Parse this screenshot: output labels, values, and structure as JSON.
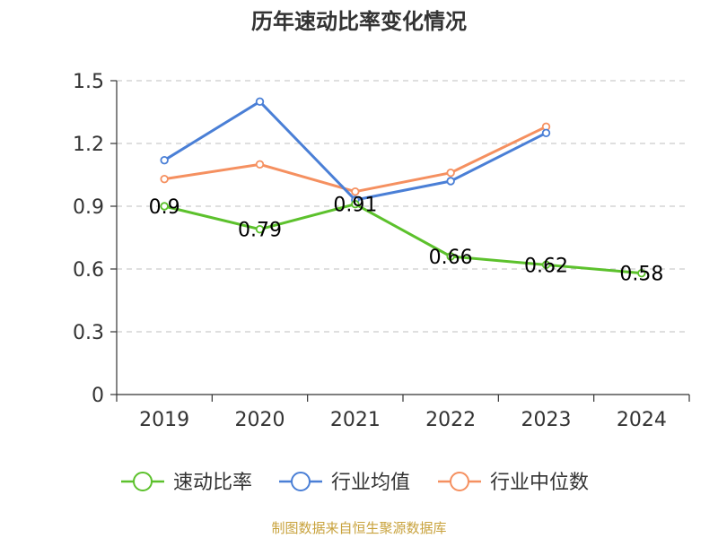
{
  "chart_data": {
    "type": "line",
    "title": "历年速动比率变化情况",
    "categories": [
      "2019",
      "2020",
      "2021",
      "2022",
      "2023",
      "2024"
    ],
    "ylim": [
      0,
      1.5
    ],
    "yticks": [
      "0",
      "0.3",
      "0.6",
      "0.9",
      "1.2",
      "1.5"
    ],
    "ytick_values": [
      0,
      0.3,
      0.6,
      0.9,
      1.2,
      1.5
    ],
    "grid": true,
    "legend_position": "bottom",
    "series": [
      {
        "name": "速动比率",
        "color": "#5cc12c",
        "values": [
          0.9,
          0.79,
          0.91,
          0.66,
          0.62,
          0.58
        ],
        "labels": [
          "0.9",
          "0.79",
          "0.91",
          "0.66",
          "0.62",
          "0.58"
        ]
      },
      {
        "name": "行业均值",
        "color": "#4a7fd6",
        "values": [
          1.12,
          1.4,
          0.93,
          1.02,
          1.25,
          null
        ]
      },
      {
        "name": "行业中位数",
        "color": "#f59060",
        "values": [
          1.03,
          1.1,
          0.97,
          1.06,
          1.28,
          null
        ]
      }
    ]
  },
  "source": "制图数据来自恒生聚源数据库"
}
